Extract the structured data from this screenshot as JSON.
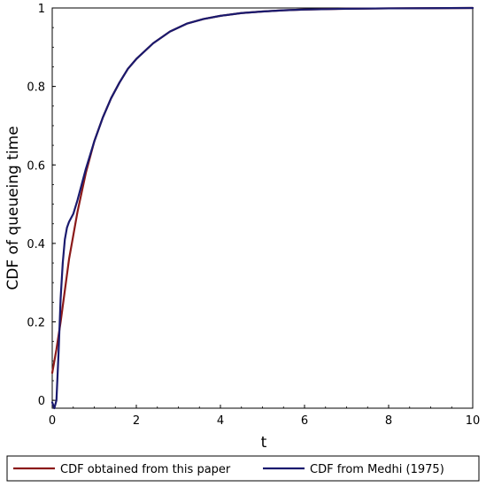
{
  "chart_data": {
    "type": "line",
    "xlabel": "t",
    "ylabel": "CDF of queueing time",
    "xlim": [
      0,
      10
    ],
    "ylim": [
      -0.02,
      1
    ],
    "x_ticks": [
      0,
      2,
      4,
      6,
      8,
      10
    ],
    "y_ticks": [
      0,
      0.2,
      0.4,
      0.6,
      0.8,
      1
    ],
    "grid": false,
    "legend_position": "bottom",
    "series": [
      {
        "name": "CDF obtained from this paper",
        "color": "#8b1a1a",
        "x": [
          0,
          0.1,
          0.2,
          0.3,
          0.4,
          0.5,
          0.6,
          0.7,
          0.8,
          1.0,
          1.2,
          1.4,
          1.6,
          1.8,
          2.0,
          2.4,
          2.8,
          3.2,
          3.6,
          4.0,
          4.5,
          5.0,
          5.5,
          6.0,
          7.0,
          8.0,
          9.0,
          10.0
        ],
        "y": [
          0.07,
          0.13,
          0.2,
          0.28,
          0.36,
          0.42,
          0.48,
          0.53,
          0.58,
          0.66,
          0.72,
          0.77,
          0.81,
          0.845,
          0.87,
          0.91,
          0.94,
          0.96,
          0.972,
          0.98,
          0.987,
          0.991,
          0.994,
          0.996,
          0.998,
          0.999,
          0.9995,
          1.0
        ]
      },
      {
        "name": "CDF from Medhi (1975)",
        "color": "#1a1a6e",
        "x": [
          0,
          0.05,
          0.1,
          0.15,
          0.2,
          0.25,
          0.3,
          0.35,
          0.4,
          0.5,
          0.6,
          0.7,
          0.8,
          1.0,
          1.2,
          1.4,
          1.6,
          1.8,
          2.0,
          2.4,
          2.8,
          3.2,
          3.6,
          4.0,
          4.5,
          5.0,
          5.5,
          6.0,
          7.0,
          8.0,
          9.0,
          10.0
        ],
        "y": [
          -0.005,
          -0.02,
          0.0,
          0.12,
          0.26,
          0.35,
          0.41,
          0.44,
          0.455,
          0.475,
          0.51,
          0.55,
          0.59,
          0.66,
          0.72,
          0.77,
          0.81,
          0.845,
          0.87,
          0.91,
          0.94,
          0.96,
          0.972,
          0.98,
          0.987,
          0.991,
          0.994,
          0.996,
          0.998,
          0.999,
          0.9995,
          1.0
        ]
      }
    ]
  }
}
